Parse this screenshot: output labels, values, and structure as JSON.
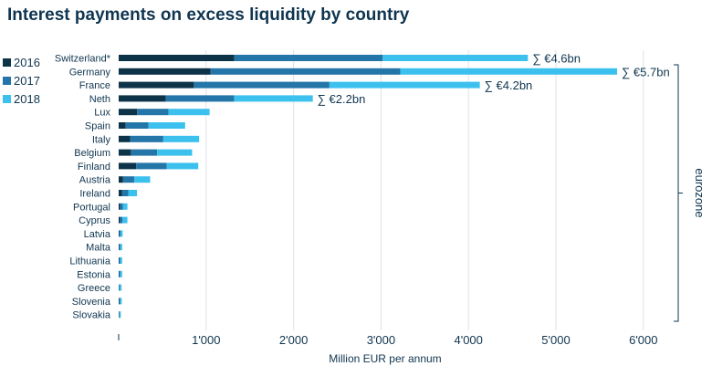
{
  "title": "Interest payments on excess liquidity by country",
  "legend": [
    {
      "label": "2016",
      "color": "#0d3349"
    },
    {
      "label": "2017",
      "color": "#2475a8"
    },
    {
      "label": "2018",
      "color": "#3cc1ee"
    }
  ],
  "bracket_label": "eurozone",
  "chart_data": {
    "type": "bar",
    "orientation": "horizontal",
    "stacked": true,
    "categories": [
      "Switzerland*",
      "Germany",
      "France",
      "Neth",
      "Lux",
      "Spain",
      "Italy",
      "Belgium",
      "Finland",
      "Austria",
      "Ireland",
      "Portugal",
      "Cyprus",
      "Latvia",
      "Malta",
      "Lithuania",
      "Estonia",
      "Greece",
      "Slovenia",
      "Slovakia"
    ],
    "series": [
      {
        "name": "2016",
        "color": "#0d3349",
        "values": [
          1320,
          1050,
          860,
          540,
          210,
          80,
          130,
          140,
          200,
          50,
          40,
          15,
          15,
          5,
          5,
          5,
          5,
          3,
          5,
          3
        ]
      },
      {
        "name": "2017",
        "color": "#2475a8",
        "values": [
          1700,
          2170,
          1550,
          780,
          360,
          260,
          380,
          300,
          350,
          130,
          70,
          35,
          30,
          15,
          10,
          10,
          10,
          10,
          10,
          7
        ]
      },
      {
        "name": "2018",
        "color": "#3cc1ee",
        "values": [
          1660,
          2480,
          1720,
          900,
          470,
          420,
          410,
          400,
          360,
          180,
          100,
          50,
          55,
          25,
          25,
          25,
          25,
          20,
          20,
          15
        ]
      }
    ],
    "totals": [
      {
        "category": "Switzerland*",
        "label": "∑ €4.6bn"
      },
      {
        "category": "Germany",
        "label": "∑ €5.7bn"
      },
      {
        "category": "France",
        "label": "∑ €4.2bn"
      },
      {
        "category": "Neth",
        "label": "∑ €2.2bn"
      }
    ],
    "xlabel": "Million EUR per annum",
    "ylabel": "",
    "xlim": [
      0,
      6500
    ],
    "xticks": [
      0,
      1000,
      2000,
      3000,
      4000,
      5000,
      6000
    ],
    "xtick_labels": [
      "",
      "1'000",
      "2'000",
      "3'000",
      "4'000",
      "5'000",
      "6'000"
    ],
    "grid": "vertical",
    "legend_position": "left"
  }
}
